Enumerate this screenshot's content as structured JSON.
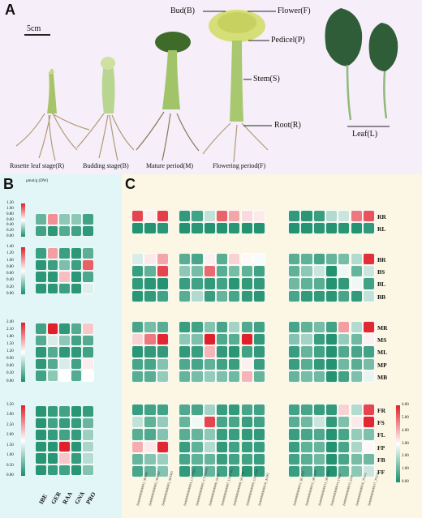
{
  "panelA": {
    "letter": "A",
    "scale_label": "5cm",
    "stages": [
      "Rosette leaf stage(R)",
      "Budding stage(B)",
      "Mature period(M)",
      "Flowering period(F)"
    ],
    "part_labels": {
      "bud": "Bud(B)",
      "flower": "Flower(F)",
      "pedicel": "Pedicel(P)",
      "stem": "Stem(S)",
      "root": "Root(R)",
      "leaf": "Leaf(L)"
    }
  },
  "panelB": {
    "letter": "B",
    "unit": "μmol/g (DW)",
    "columns": [
      "IBE",
      "GER",
      "RAA",
      "GNA",
      "PRO"
    ],
    "groups": [
      {
        "rows": [
          "RR",
          "RL"
        ],
        "scale": [
          0,
          0.2,
          0.4,
          0.6,
          0.8,
          1.0,
          1.2
        ],
        "values": [
          [
            0.2,
            0.9,
            0.3,
            0.3,
            0.1
          ],
          [
            0.1,
            0.05,
            0.15,
            0.1,
            0.05
          ]
        ]
      },
      {
        "rows": [
          "BR",
          "BS",
          "BL",
          "BB"
        ],
        "scale": [
          0,
          0.2,
          0.4,
          0.6,
          0.8,
          1.0,
          1.2,
          1.4
        ],
        "values": [
          [
            0.1,
            1.0,
            0.1,
            0.05,
            0.2
          ],
          [
            0.05,
            0.1,
            0.3,
            0.1,
            1.2
          ],
          [
            0.05,
            0.05,
            0.9,
            0.05,
            0.15
          ],
          [
            0.05,
            0.05,
            0.1,
            0.05,
            0.6
          ]
        ]
      },
      {
        "rows": [
          "MR",
          "MS",
          "ML",
          "MP",
          "MB"
        ],
        "scale": [
          0,
          0.3,
          0.6,
          0.9,
          1.2,
          1.5,
          1.8,
          2.1,
          2.4
        ],
        "values": [
          [
            0.2,
            2.4,
            0.1,
            0.3,
            1.5
          ],
          [
            0.3,
            1.0,
            0.6,
            0.2,
            0.3
          ],
          [
            0.1,
            0.3,
            0.1,
            0.1,
            0.2
          ],
          [
            0.1,
            0.3,
            1.0,
            0.2,
            1.3
          ],
          [
            0.2,
            0.6,
            1.2,
            0.3,
            1.2
          ]
        ]
      },
      {
        "rows": [
          "FR",
          "FS",
          "FL",
          "FP",
          "FB",
          "FF"
        ],
        "scale": [
          0,
          0.5,
          1.0,
          1.5,
          2.0,
          2.5,
          3.0,
          3.5
        ],
        "values": [
          [
            0.1,
            0.2,
            0.3,
            0.1,
            0.2
          ],
          [
            0.1,
            0.3,
            0.2,
            0.2,
            0.6
          ],
          [
            0.1,
            0.2,
            0.3,
            0.2,
            1.0
          ],
          [
            0.1,
            0.1,
            3.5,
            0.1,
            1.1
          ],
          [
            0.1,
            0.1,
            2.2,
            0.2,
            1.2
          ],
          [
            0.1,
            0.2,
            0.3,
            0.1,
            0.8
          ]
        ]
      }
    ]
  },
  "panelC": {
    "letter": "C",
    "scale": [
      0,
      1.0,
      2.0,
      3.0,
      4.0,
      5.0,
      6.0
    ],
    "column_groups": [
      [
        "Bol000000000001_MAM1",
        "Bol000000000002_MAM2",
        "Bol000000000003_MAM3"
      ],
      [
        "Bol000000000004_CYP79F1",
        "Bol000000000005_CYP83A1",
        "Bol000000000006_SUR1",
        "Bol000000000007_UGT74C1",
        "Bol000000000008_SOT18",
        "Bol000000000009_GSL-OH",
        "Bol000000000010_AOP2"
      ],
      [
        "Bol000000000011_BCAT4",
        "Bol000000000012_MYB28",
        "Bol000000000013_MYB29",
        "Bol000000000014_FMO",
        "Bol000000000015_ESP",
        "Bol000000000016_TGG1",
        "Bol000000000017_TGG2"
      ]
    ],
    "row_groups": [
      {
        "rows": [
          "RR",
          "RL"
        ],
        "values": [
          [
            5.5,
            3.2,
            5.6,
            0.3,
            0.5,
            2.2,
            5.1,
            4.2,
            3.5,
            3.3,
            0.3,
            0.2,
            0.4,
            2.0,
            2.3,
            4.8,
            5.3
          ],
          [
            0.1,
            0.1,
            0.2,
            0.1,
            0.2,
            0.1,
            0.1,
            0.2,
            0.1,
            0.1,
            0.1,
            0.1,
            0.2,
            0.1,
            0.2,
            0.1,
            0.3
          ]
        ]
      },
      {
        "rows": [
          "BR",
          "BS",
          "BL",
          "BB"
        ],
        "values": [
          [
            2.5,
            3.3,
            4.2,
            0.8,
            0.6,
            3.2,
            0.8,
            3.6,
            3.1,
            2.9,
            0.8,
            0.9,
            0.6,
            1.0,
            1.2,
            2.0,
            5.8
          ],
          [
            0.4,
            0.9,
            5.5,
            1.5,
            1.2,
            5.0,
            0.8,
            1.2,
            0.9,
            0.5,
            0.9,
            1.5,
            2.3,
            0.1,
            2.8,
            1.0,
            2.3
          ],
          [
            0.3,
            0.2,
            0.1,
            0.4,
            0.5,
            0.3,
            0.5,
            0.2,
            0.3,
            0.3,
            1.1,
            0.9,
            0.8,
            0.1,
            0.3,
            2.8,
            0.5
          ],
          [
            0.2,
            0.3,
            0.5,
            0.8,
            2.0,
            0.4,
            1.0,
            0.6,
            0.3,
            0.2,
            0.6,
            0.3,
            0.3,
            0.2,
            0.6,
            0.3,
            2.2
          ]
        ]
      },
      {
        "rows": [
          "MR",
          "MS",
          "ML",
          "MP",
          "MB"
        ],
        "values": [
          [
            0.6,
            1.2,
            0.8,
            0.4,
            0.5,
            1.4,
            0.6,
            1.8,
            0.7,
            0.5,
            0.6,
            0.9,
            1.2,
            0.5,
            4.3,
            2.0,
            5.9
          ],
          [
            3.6,
            4.8,
            5.9,
            1.5,
            1.3,
            6.0,
            0.7,
            0.8,
            6.0,
            0.3,
            1.4,
            1.8,
            0.4,
            0.1,
            1.6,
            1.1,
            3.2
          ],
          [
            0.2,
            0.3,
            0.3,
            0.3,
            0.4,
            4.0,
            0.3,
            0.2,
            0.5,
            0.3,
            0.4,
            1.0,
            0.5,
            0.1,
            0.7,
            0.6,
            0.5
          ],
          [
            0.6,
            0.6,
            1.4,
            0.7,
            0.6,
            0.9,
            0.5,
            0.4,
            3.2,
            0.4,
            0.4,
            0.8,
            0.3,
            0.1,
            1.1,
            0.8,
            1.2
          ],
          [
            0.8,
            0.8,
            1.6,
            1.0,
            1.2,
            1.6,
            1.3,
            1.1,
            4.0,
            1.0,
            1.0,
            1.2,
            1.1,
            0.1,
            0.5,
            1.3,
            2.7
          ]
        ]
      },
      {
        "rows": [
          "FR",
          "FS",
          "FL",
          "FP",
          "FB",
          "FF"
        ],
        "values": [
          [
            0.4,
            0.5,
            0.5,
            0.7,
            0.6,
            1.8,
            0.4,
            0.3,
            0.6,
            0.5,
            0.5,
            0.6,
            0.4,
            0.3,
            3.6,
            2.0,
            5.5
          ],
          [
            2.2,
            0.9,
            1.6,
            1.0,
            2.8,
            5.5,
            0.6,
            0.6,
            0.4,
            0.5,
            0.8,
            1.1,
            2.3,
            0.3,
            1.3,
            3.3,
            5.9
          ],
          [
            0.8,
            0.7,
            1.4,
            0.8,
            1.0,
            1.5,
            0.4,
            0.4,
            0.3,
            0.3,
            0.4,
            0.6,
            0.7,
            0.1,
            0.6,
            1.6,
            1.3
          ],
          [
            4.1,
            3.3,
            5.9,
            0.4,
            0.9,
            2.0,
            0.3,
            0.5,
            0.4,
            0.4,
            0.4,
            0.9,
            1.0,
            0.1,
            0.6,
            1.9,
            3.1
          ],
          [
            1.0,
            1.4,
            1.7,
            0.6,
            0.9,
            1.0,
            0.4,
            0.5,
            0.5,
            0.4,
            0.5,
            0.8,
            1.1,
            0.1,
            0.6,
            1.2,
            1.1
          ],
          [
            0.6,
            1.0,
            1.4,
            0.3,
            0.5,
            1.0,
            0.5,
            0.4,
            0.2,
            0.3,
            0.4,
            0.7,
            0.6,
            0.1,
            0.8,
            1.5,
            2.3
          ]
        ]
      }
    ]
  },
  "colors": {
    "low": "#1b8f6c",
    "mid": "#ffffff",
    "high": "#e0202a",
    "bgA": "#f6eef8",
    "bgB": "#e3f6f7",
    "bgC": "#fbf7e4"
  }
}
